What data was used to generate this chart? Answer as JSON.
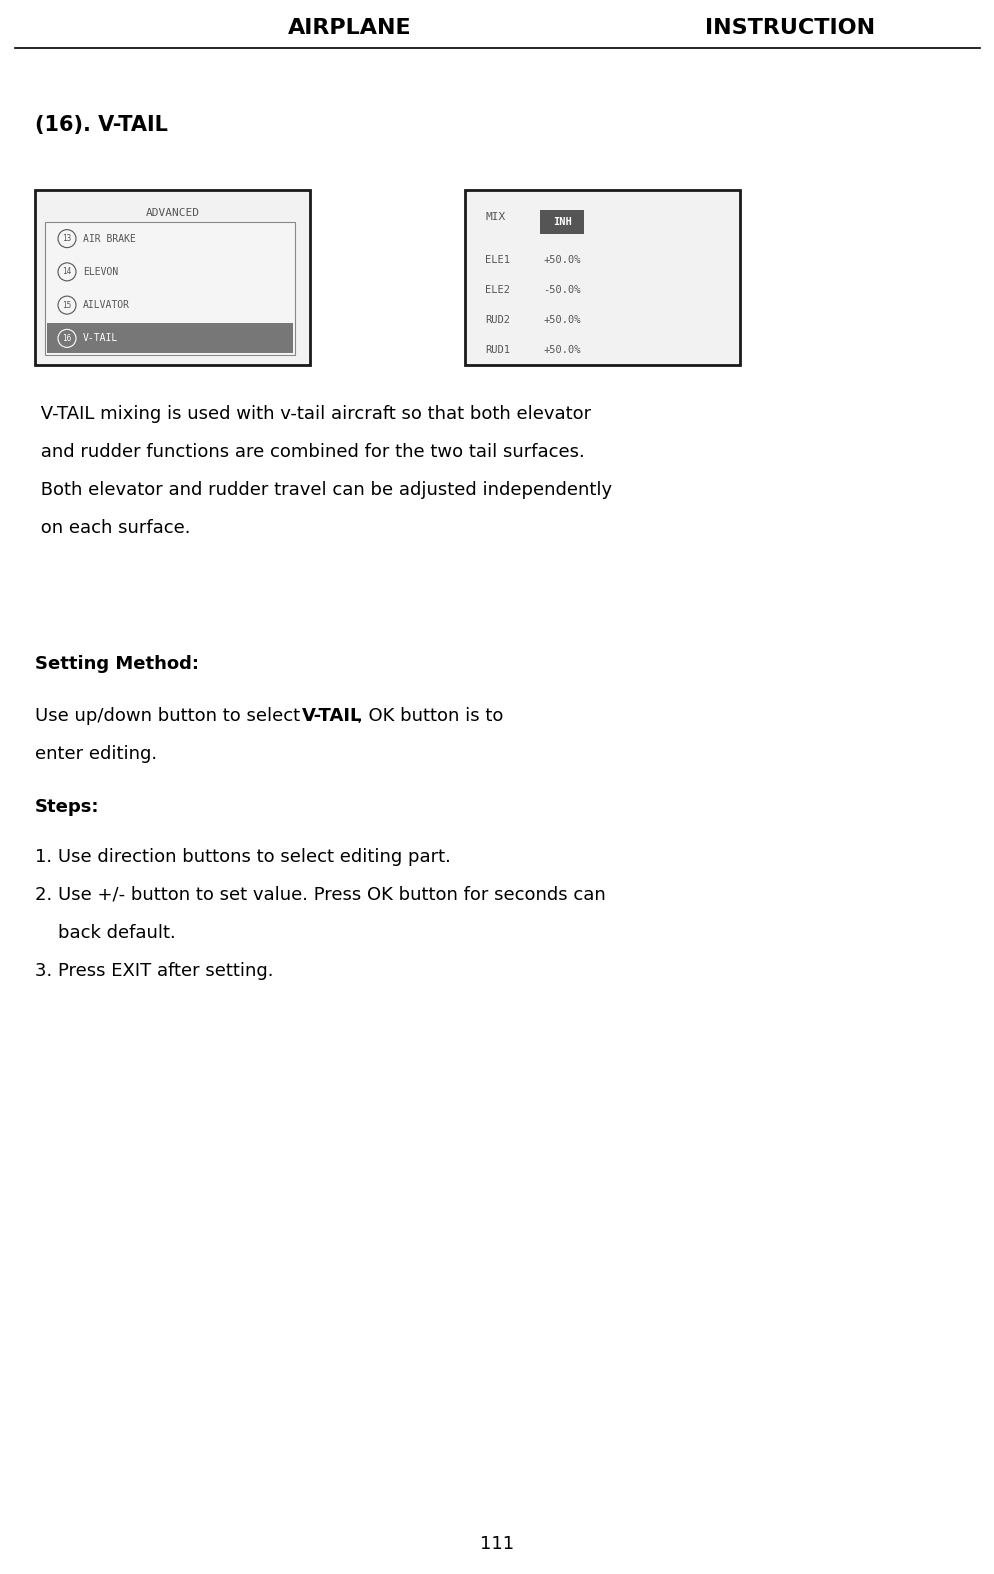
{
  "page_width": 9.95,
  "page_height": 15.74,
  "bg_color": "#ffffff",
  "header_left": "AIRPLANE",
  "header_right": "INSTRUCTION",
  "screen1_title": "ADVANCED",
  "screen1_items": [
    {
      "num": "13",
      "text": "AIR BRAKE",
      "highlighted": false
    },
    {
      "num": "14",
      "text": "ELEVON",
      "highlighted": false
    },
    {
      "num": "15",
      "text": "AILVATOR",
      "highlighted": false
    },
    {
      "num": "16",
      "text": "V-TAIL",
      "highlighted": true
    }
  ],
  "screen2_mix_label": "MIX",
  "screen2_inh": "INH",
  "screen2_items": [
    {
      "label": "ELE1",
      "value": "+50.0%"
    },
    {
      "label": "ELE2",
      "value": "-50.0%"
    },
    {
      "label": "RUD2",
      "value": "+50.0%"
    },
    {
      "label": "RUD1",
      "value": "+50.0%"
    }
  ],
  "line_color": "#000000",
  "screen_border_color": "#1a1a1a",
  "highlight_color": "#777777",
  "inh_bg": "#555555",
  "inh_text": "#ffffff",
  "mono_color": "#555555"
}
